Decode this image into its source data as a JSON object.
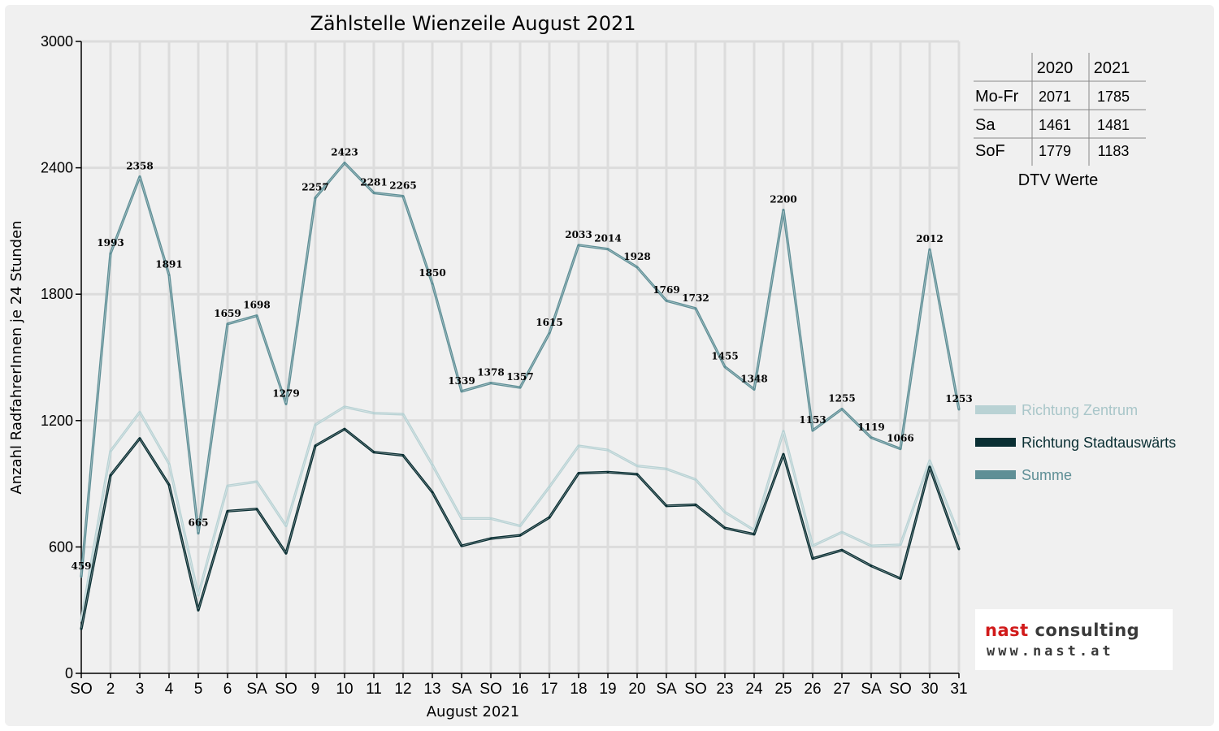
{
  "chart_data": {
    "type": "line",
    "title": "Zählstelle Wienzeile August 2021",
    "xlabel": "August 2021",
    "ylabel": "Anzahl RadfahrerInnen je 24 Stunden",
    "ylim": [
      0,
      3000
    ],
    "yticks": [
      "0",
      "600",
      "1200",
      "1800",
      "2400",
      "3000"
    ],
    "grid": true,
    "legend_position": "right",
    "categories": [
      "SO",
      "2",
      "3",
      "4",
      "5",
      "6",
      "SA",
      "SO",
      "9",
      "10",
      "11",
      "12",
      "13",
      "SA",
      "SO",
      "16",
      "17",
      "18",
      "19",
      "20",
      "SA",
      "SO",
      "23",
      "24",
      "25",
      "26",
      "27",
      "SA",
      "SO",
      "30",
      "31"
    ],
    "category_colors": [
      "#ff0000",
      "#000000",
      "#000000",
      "#000000",
      "#000000",
      "#000000",
      "#000000",
      "#ff0000",
      "#000000",
      "#000000",
      "#000000",
      "#000000",
      "#000000",
      "#000000",
      "#ff0000",
      "#000000",
      "#000000",
      "#000000",
      "#000000",
      "#000000",
      "#000000",
      "#ff0000",
      "#000000",
      "#000000",
      "#000000",
      "#000000",
      "#000000",
      "#000000",
      "#ff0000",
      "#000000",
      "#000000"
    ],
    "series": [
      {
        "name": "Richtung Zentrum",
        "color": "#b9d2d4",
        "values": [
          250,
          1055,
          1240,
          995,
          370,
          890,
          910,
          700,
          1180,
          1265,
          1235,
          1230,
          990,
          735,
          735,
          700,
          885,
          1080,
          1060,
          985,
          970,
          920,
          765,
          680,
          1150,
          605,
          670,
          605,
          610,
          1010,
          660
        ]
      },
      {
        "name": "Richtung Stadtauswärts",
        "color": "#0a2f33",
        "values": [
          210,
          940,
          1115,
          895,
          300,
          770,
          780,
          570,
          1080,
          1160,
          1050,
          1035,
          860,
          605,
          640,
          655,
          740,
          950,
          955,
          945,
          795,
          800,
          690,
          660,
          1040,
          545,
          585,
          510,
          450,
          980,
          590
        ]
      },
      {
        "name": "Summe",
        "color": "#5f8f96",
        "values": [
          459,
          1993,
          2358,
          1891,
          665,
          1659,
          1698,
          1279,
          2257,
          2423,
          2281,
          2265,
          1850,
          1339,
          1378,
          1357,
          1615,
          2033,
          2014,
          1928,
          1769,
          1732,
          1455,
          1348,
          2200,
          1153,
          1255,
          1119,
          1066,
          2012,
          1253
        ]
      }
    ],
    "data_labels": [
      "459",
      "1993",
      "2358",
      "1891",
      "665",
      "1659",
      "1698",
      "1279",
      "2257",
      "2423",
      "2281",
      "2265",
      "1850",
      "1339",
      "1378",
      "1357",
      "1615",
      "2033",
      "2014",
      "1928",
      "1769",
      "1732",
      "1455",
      "1348",
      "2200",
      "1153",
      "1255",
      "1119",
      "1066",
      "2012",
      "1253"
    ]
  },
  "dtv_table": {
    "headers": [
      "2020",
      "2021"
    ],
    "rows": [
      {
        "label": "Mo-Fr",
        "v2020": "2071",
        "v2021": "1785"
      },
      {
        "label": "Sa",
        "v2020": "1461",
        "v2021": "1481"
      },
      {
        "label": "SoF",
        "v2020": "1779",
        "v2021": "1183"
      }
    ],
    "caption": "DTV Werte"
  },
  "logo": {
    "line1_a": "nast",
    "line1_b": " consulting",
    "line2": "www.nast.at"
  }
}
